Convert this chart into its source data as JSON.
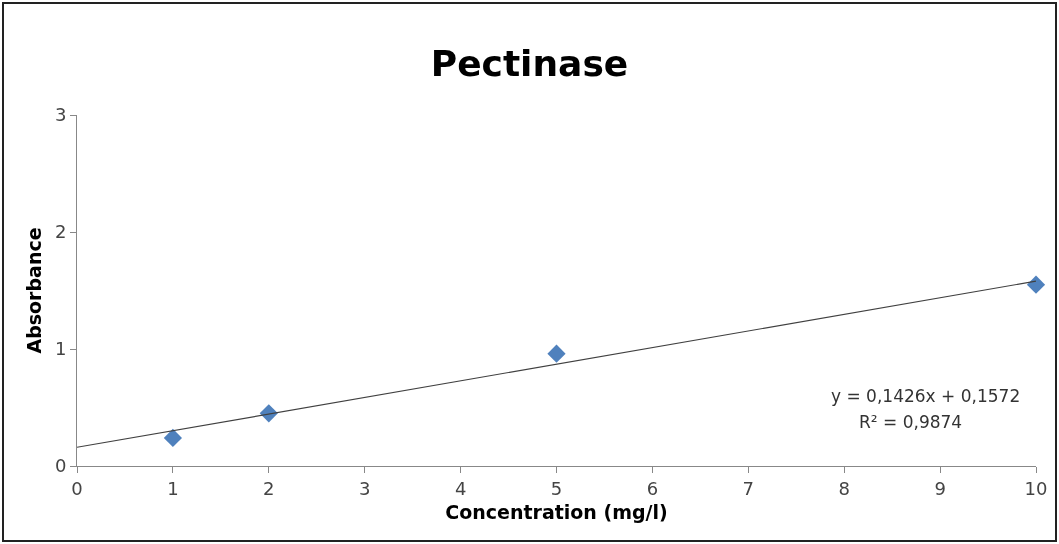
{
  "chart_data": {
    "type": "scatter",
    "title": "Pectinase",
    "xlabel": "Concentration (mg/l)",
    "ylabel": "Absorbance",
    "series": [
      {
        "color": "#4f81bd",
        "x": [
          1,
          2,
          5,
          10
        ],
        "values": [
          0.24,
          0.45,
          0.96,
          1.55
        ]
      },
      {
        "type": "line",
        "color": "#404040",
        "marker": "none",
        "x": [
          0,
          10
        ],
        "values": [
          0.16,
          1.58
        ]
      }
    ],
    "annotations": [
      "y = 0,1426x + 0,1572",
      "R² = 0,9874"
    ],
    "xlim": [
      0,
      10
    ],
    "xticks": [
      0,
      1,
      2,
      3,
      4,
      5,
      6,
      7,
      8,
      9,
      10
    ],
    "ylim": [
      0,
      3
    ],
    "yticks": [
      0,
      1,
      2,
      3
    ],
    "grid": false,
    "marker": "diamond",
    "line_style": "solid"
  }
}
